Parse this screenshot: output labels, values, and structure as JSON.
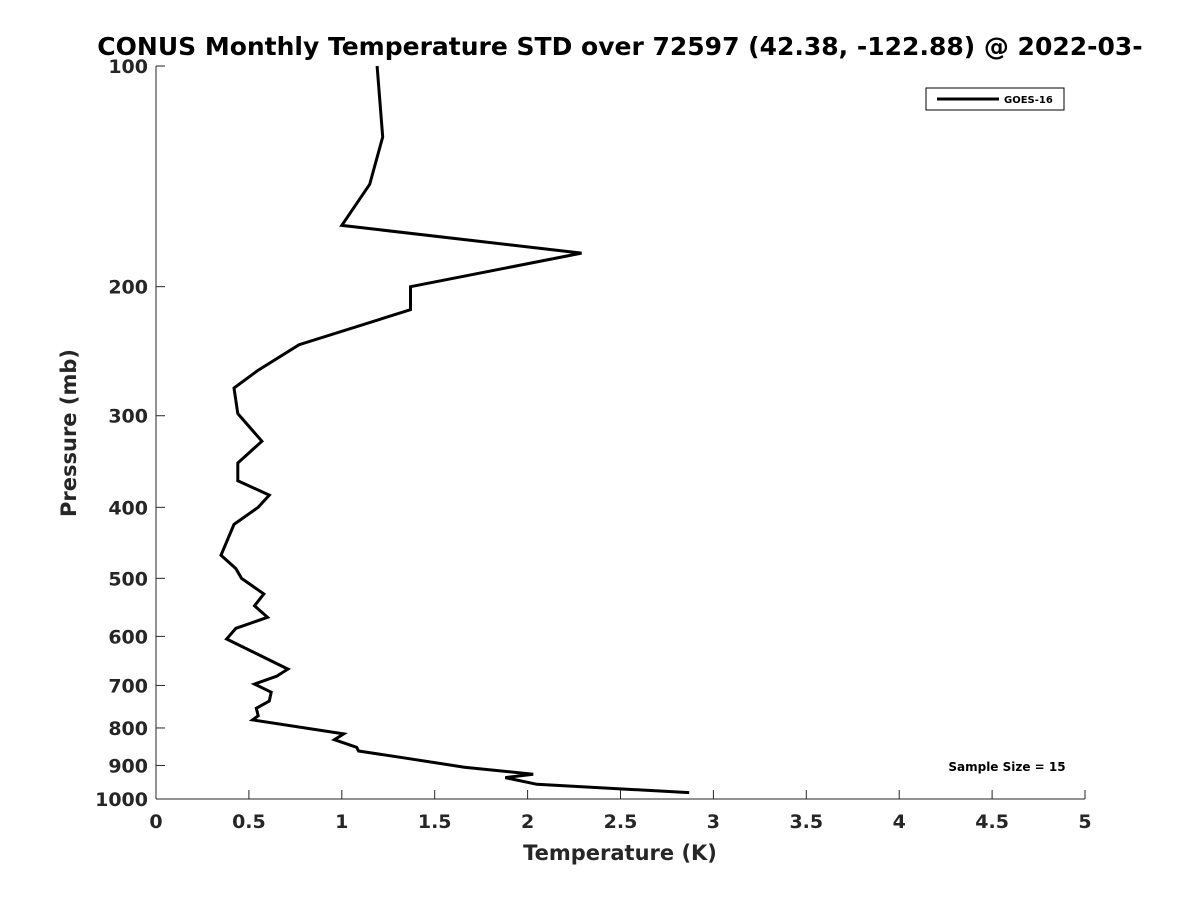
{
  "chart_data": {
    "type": "line",
    "title": "CONUS Monthly Temperature STD over 72597 (42.38, -122.88) @ 2022-03-",
    "xlabel": "Temperature (K)",
    "ylabel": "Pressure (mb)",
    "xlim": [
      0,
      5
    ],
    "ylim": [
      100,
      1000
    ],
    "y_scale": "log",
    "y_reversed": true,
    "x_ticks": [
      "0",
      "0.5",
      "1",
      "1.5",
      "2",
      "2.5",
      "3",
      "3.5",
      "4",
      "4.5",
      "5"
    ],
    "y_ticks": [
      "100",
      "200",
      "300",
      "400",
      "500",
      "600",
      "700",
      "800",
      "900",
      "1000"
    ],
    "grid": false,
    "legend_position": "top-right",
    "annotation": "Sample Size = 15",
    "series": [
      {
        "name": "GOES-16",
        "color": "#000000",
        "points": [
          [
            1.19,
            100
          ],
          [
            1.22,
            125
          ],
          [
            1.15,
            145
          ],
          [
            1.0,
            165
          ],
          [
            2.29,
            180
          ],
          [
            1.37,
            200
          ],
          [
            1.37,
            215
          ],
          [
            0.77,
            240
          ],
          [
            0.55,
            260
          ],
          [
            0.42,
            275
          ],
          [
            0.44,
            298
          ],
          [
            0.57,
            325
          ],
          [
            0.44,
            348
          ],
          [
            0.44,
            368
          ],
          [
            0.61,
            385
          ],
          [
            0.55,
            400
          ],
          [
            0.42,
            422
          ],
          [
            0.35,
            465
          ],
          [
            0.43,
            485
          ],
          [
            0.46,
            500
          ],
          [
            0.58,
            525
          ],
          [
            0.53,
            545
          ],
          [
            0.6,
            565
          ],
          [
            0.43,
            585
          ],
          [
            0.38,
            605
          ],
          [
            0.71,
            665
          ],
          [
            0.65,
            680
          ],
          [
            0.53,
            697
          ],
          [
            0.62,
            715
          ],
          [
            0.61,
            735
          ],
          [
            0.54,
            752
          ],
          [
            0.55,
            770
          ],
          [
            0.52,
            780
          ],
          [
            1.01,
            815
          ],
          [
            0.96,
            830
          ],
          [
            1.08,
            850
          ],
          [
            1.09,
            860
          ],
          [
            1.35,
            880
          ],
          [
            1.66,
            905
          ],
          [
            2.03,
            925
          ],
          [
            1.88,
            935
          ],
          [
            2.05,
            955
          ],
          [
            2.87,
            980
          ]
        ]
      }
    ]
  }
}
